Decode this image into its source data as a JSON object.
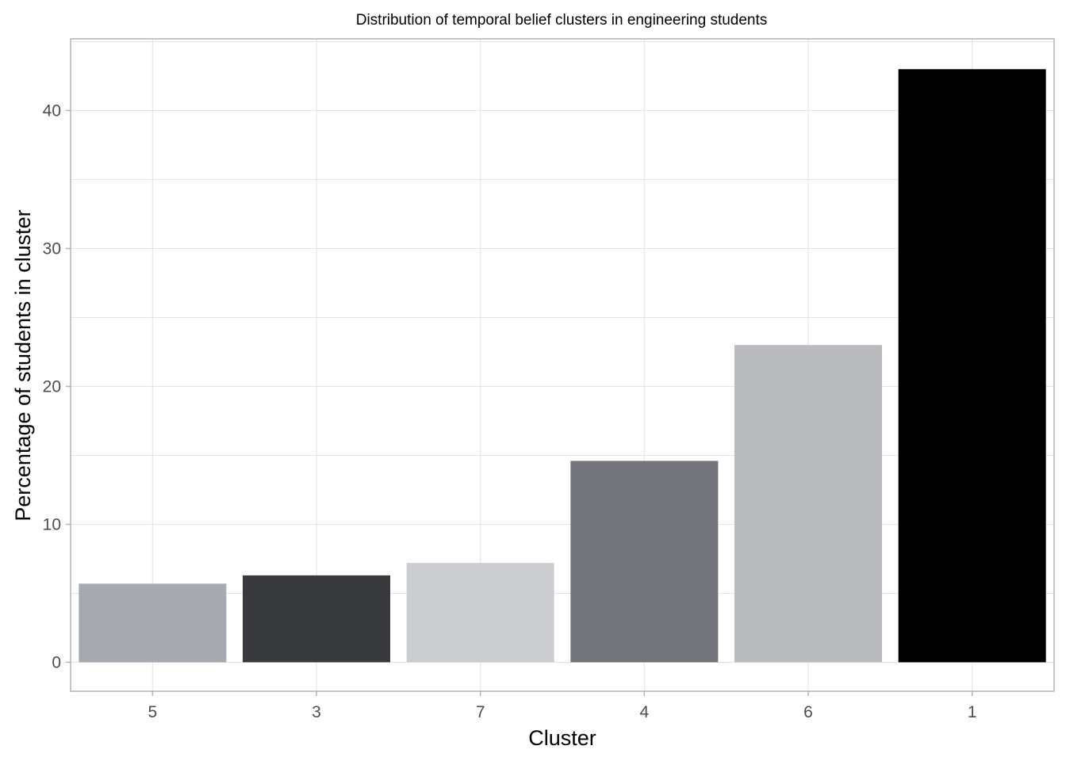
{
  "chart_data": {
    "type": "bar",
    "title": "Distribution of temporal belief clusters in engineering students",
    "xlabel": "Cluster",
    "ylabel": "Percentage of students in cluster",
    "categories": [
      "5",
      "3",
      "7",
      "4",
      "6",
      "1"
    ],
    "values": [
      5.7,
      6.3,
      7.2,
      14.6,
      23.0,
      43.0
    ],
    "colors": [
      "#a7aab1",
      "#38393d",
      "#cbccd0",
      "#727479",
      "#b9bbbf",
      "#000000"
    ],
    "ylim": [
      -2.1,
      45.2
    ],
    "yticks": [
      0,
      10,
      20,
      30,
      40
    ],
    "grid": true,
    "legend": "none"
  }
}
